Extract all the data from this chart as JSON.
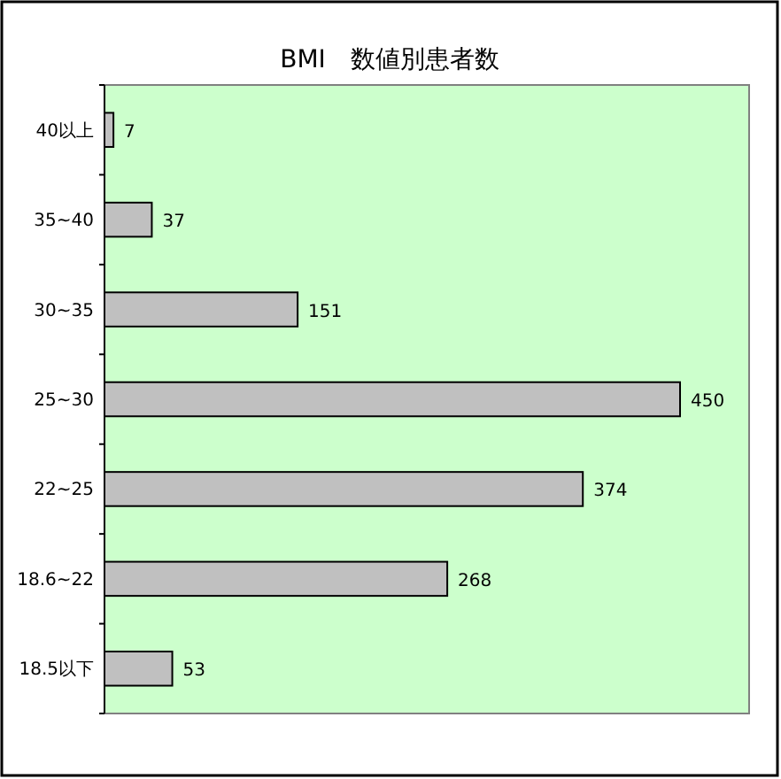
{
  "chart_data": {
    "type": "bar",
    "orientation": "horizontal",
    "title": "BMI　数値別患者数",
    "categories": [
      "40以上",
      "35~40",
      "30~35",
      "25~30",
      "22~25",
      "18.6~22",
      "18.5以下"
    ],
    "values": [
      7,
      37,
      151,
      450,
      374,
      268,
      53
    ],
    "color": "#c0c0c0",
    "data_labels": true
  }
}
